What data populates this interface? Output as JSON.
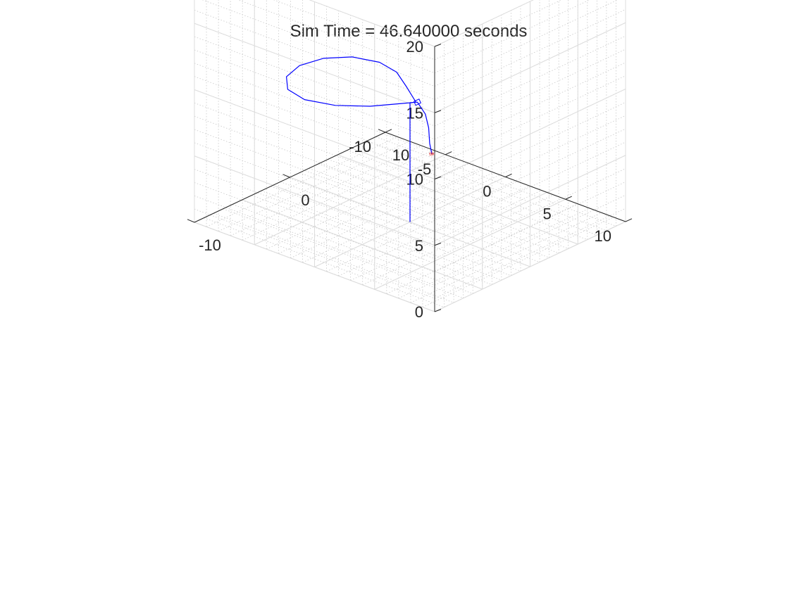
{
  "chart_data": {
    "type": "line",
    "projection": "3d",
    "title": "Sim Time = 46.640000 seconds",
    "xlabel": "",
    "ylabel": "",
    "zlabel": "",
    "xlim": [
      -10,
      10
    ],
    "ylim": [
      -10,
      10
    ],
    "zlim": [
      0,
      20
    ],
    "x_ticks": [
      "-10",
      "0",
      "10"
    ],
    "y_ticks": [
      "-10",
      "-5",
      "0",
      "5",
      "10"
    ],
    "z_ticks": [
      "0",
      "5",
      "10",
      "15",
      "20"
    ],
    "grid": true,
    "minor_grid": true,
    "legend": "none",
    "series": [
      {
        "line_color": "#0000ff",
        "points": [
          [
            0,
            0,
            0
          ],
          [
            0,
            0,
            3
          ],
          [
            0,
            0,
            6
          ],
          [
            0,
            0,
            9
          ],
          [
            0,
            0.5,
            9.2
          ],
          [
            1.5,
            -1.5,
            9.2
          ],
          [
            3,
            -3.5,
            9.1
          ],
          [
            3.6,
            -5.4,
            9.0
          ],
          [
            3.0,
            -7.2,
            9.0
          ],
          [
            1.5,
            -8.4,
            9.0
          ],
          [
            -0.5,
            -8.8,
            9.0
          ],
          [
            -2.5,
            -8.3,
            9.0
          ],
          [
            -4.0,
            -7.0,
            9.0
          ],
          [
            -4.5,
            -5.2,
            9.0
          ],
          [
            -3.8,
            -3.2,
            9.0
          ],
          [
            -2.3,
            -1.5,
            9.0
          ],
          [
            -0.5,
            -0.3,
            9.0
          ],
          [
            0.4,
            0.3,
            9.0
          ],
          [
            0.6,
            0.8,
            8.2
          ],
          [
            0.7,
            1.0,
            7.2
          ],
          [
            0.8,
            1.0,
            6.0
          ],
          [
            0.9,
            1.1,
            5.2
          ]
        ]
      }
    ],
    "target_marker": {
      "x": 0.9,
      "y": 1.1,
      "z": 5.2,
      "color": "#cc0000"
    }
  }
}
